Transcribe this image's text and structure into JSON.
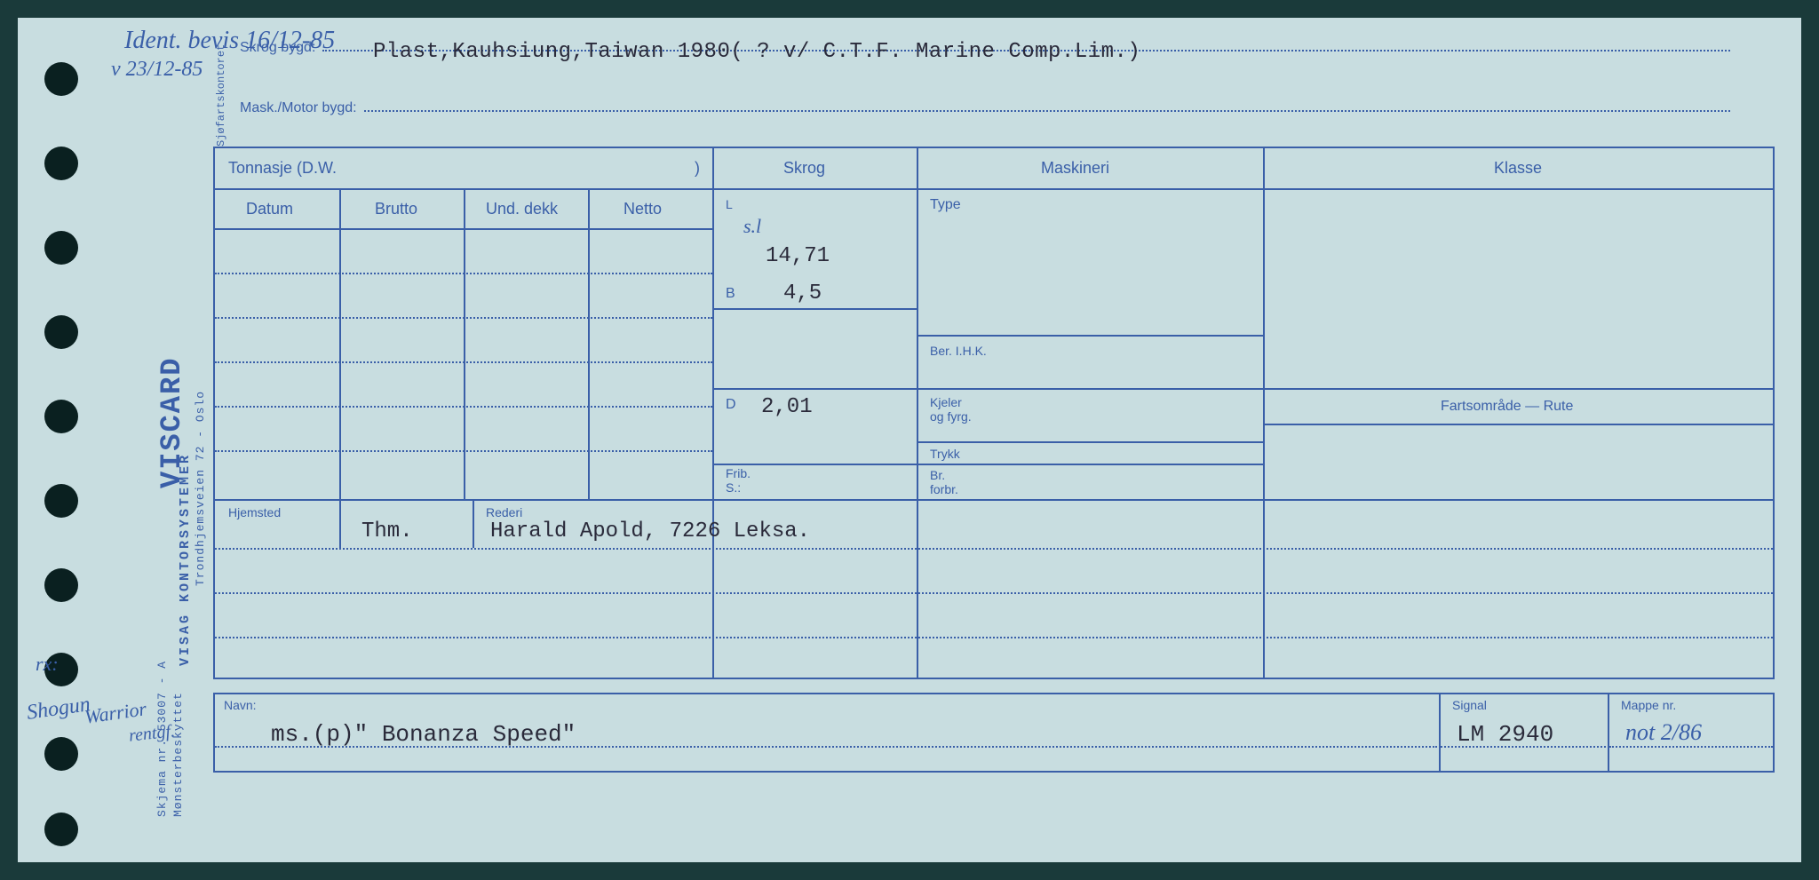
{
  "handwriting": {
    "ident_bevis": "Ident. bevis 16/12-85",
    "date2": "v 23/12-85",
    "sl": "s.l",
    "rx": "rx:",
    "shogun": "Shogun",
    "warrior": "Warrior",
    "rentgf": "rentgf.",
    "mappe_hw": "not 2/86"
  },
  "typed": {
    "skrog_bygd_value": "Plast,Kauhsiung,Taiwan 1980( ? v/ C.T.F. Marine Comp.Lim.)",
    "L": "14,71",
    "B": "4,5",
    "D": "2,01",
    "hjemsted": "Thm.",
    "rederi": "Harald Apold, 7226 Leksa.",
    "navn": "ms.(p)\" Bonanza Speed\"",
    "signal": "LM 2940"
  },
  "labels": {
    "skrog_bygd": "Skrog bygd:",
    "mask_motor": "Mask./Motor bygd:",
    "tonnasje": "Tonnasje (D.W.",
    "tonnasje_close": ")",
    "datum": "Datum",
    "brutto": "Brutto",
    "und_dekk": "Und. dekk",
    "netto": "Netto",
    "skrog": "Skrog",
    "maskineri": "Maskineri",
    "klasse": "Klasse",
    "L": "L",
    "B": "B",
    "D": "D",
    "frib": "Frib.",
    "S": "S.:",
    "type": "Type",
    "ber_ihk": "Ber. I.H.K.",
    "kjeler": "Kjeler",
    "og_fyrg": "og fyrg.",
    "trykk": "Trykk",
    "br": "Br.",
    "forbr": "forbr.",
    "fartsomrade": "Fartsområde — Rute",
    "hjemsted": "Hjemsted",
    "rederi": "Rederi",
    "navn": "Navn:",
    "signal": "Signal",
    "mappe": "Mappe nr."
  },
  "side": {
    "viscard": "VISCARD",
    "kontor": "VISAG KONTORSYSTEMER",
    "addr": "Trondhjemsveien 72 - Oslo",
    "skjema": "Skjema nr. 53007 - A",
    "monster": "Mønsterbeskyttet",
    "sjofart": "Sjøfartskontoret"
  },
  "layout": {
    "hole_positions": [
      50,
      145,
      240,
      335,
      430,
      525,
      620,
      715,
      810,
      895
    ]
  },
  "colors": {
    "card_bg": "#c8dde0",
    "ink_blue": "#3a5fa8",
    "typed_dark": "#2a2a3a",
    "outer_bg": "#1a3a3a"
  }
}
